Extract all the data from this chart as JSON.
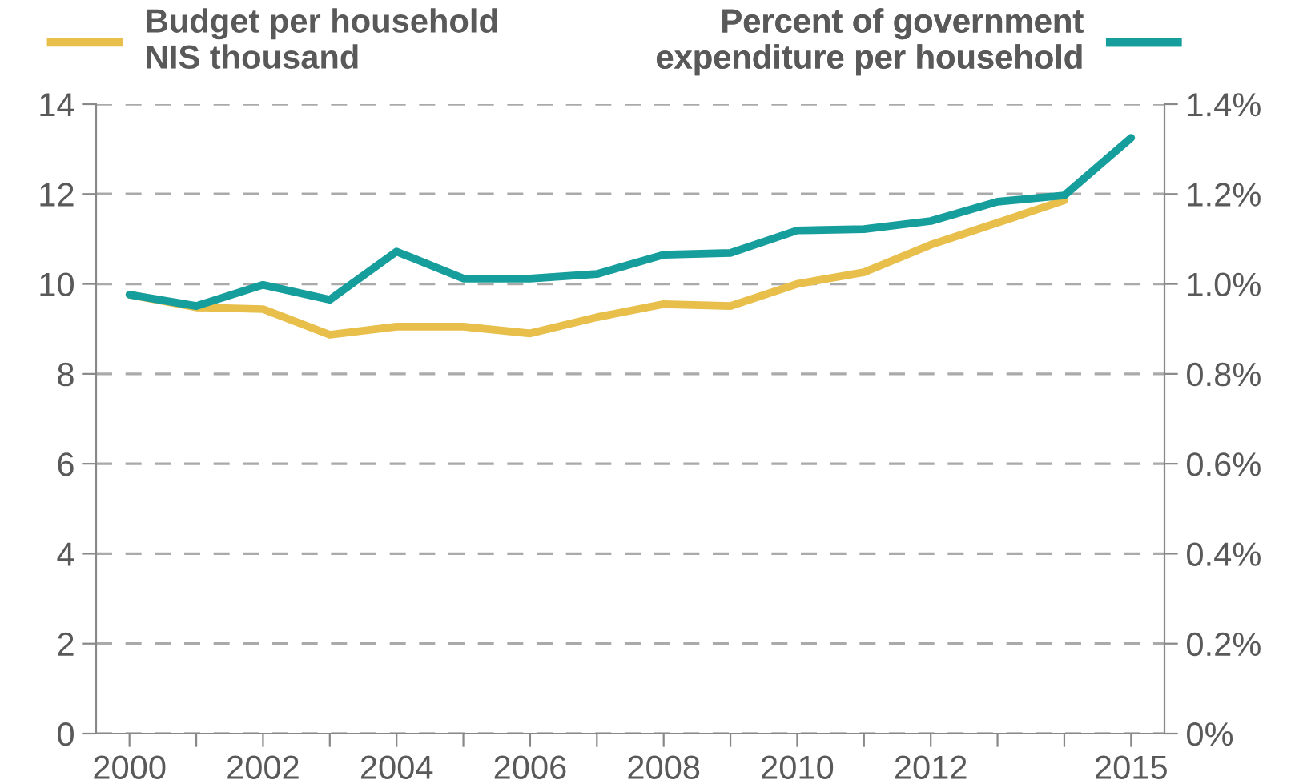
{
  "chart_data": {
    "type": "line",
    "x": [
      2000,
      2001,
      2002,
      2003,
      2004,
      2005,
      2006,
      2007,
      2008,
      2009,
      2010,
      2011,
      2012,
      2013,
      2014,
      2015
    ],
    "series": [
      {
        "name": "Budget per household\nNIS thousand",
        "color": "#e8bf4b",
        "values": [
          9.76,
          9.48,
          9.44,
          8.87,
          9.05,
          9.05,
          8.9,
          9.26,
          9.55,
          9.51,
          10.0,
          10.26,
          10.87,
          11.36,
          11.86,
          null
        ]
      },
      {
        "name": "Percent of government\nexpenditure per household",
        "color": "#169e9c",
        "axis": "y2",
        "values": [
          0.976,
          0.951,
          0.998,
          0.965,
          1.072,
          1.012,
          1.012,
          1.022,
          1.065,
          1.069,
          1.119,
          1.122,
          1.14,
          1.183,
          1.197,
          1.325
        ]
      }
    ],
    "xlim": [
      1999.5,
      2015.5
    ],
    "xticks": [
      2000,
      {
        "value": 2001,
        "label": null
      },
      2002,
      {
        "value": 2003,
        "label": null
      },
      2004,
      {
        "value": 2005,
        "label": null
      },
      2006,
      {
        "value": 2007,
        "label": null
      },
      2008,
      {
        "value": 2009,
        "label": null
      },
      2010,
      {
        "value": 2011,
        "label": null
      },
      2012,
      {
        "value": 2013,
        "label": null
      },
      {
        "value": 2014,
        "label": null
      },
      2015
    ],
    "ylim": [
      0,
      14
    ],
    "yticks": [
      0,
      2,
      4,
      6,
      8,
      10,
      12,
      14
    ],
    "y2lim": [
      0,
      1.4
    ],
    "y2ticks": [
      {
        "value": 0,
        "label": "0%"
      },
      {
        "value": 0.2,
        "label": "0.2%"
      },
      {
        "value": 0.4,
        "label": "0.4%"
      },
      {
        "value": 0.6,
        "label": "0.6%"
      },
      {
        "value": 0.8,
        "label": "0.8%"
      },
      {
        "value": 1.0,
        "label": "1.0%"
      },
      {
        "value": 1.2,
        "label": "1.2%"
      },
      {
        "value": 1.4,
        "label": "1.4%"
      }
    ],
    "grid": "y",
    "legend": "top",
    "line_style": "solid",
    "marker": "none"
  }
}
